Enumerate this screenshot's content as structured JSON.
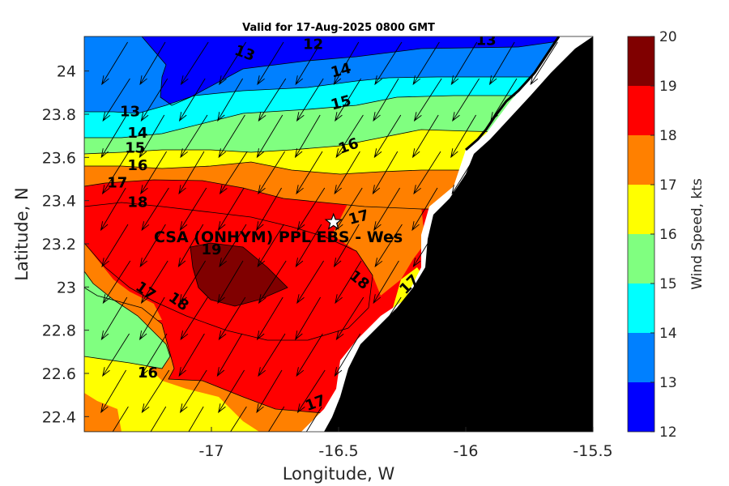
{
  "chart_data": {
    "type": "heatmap",
    "subtype": "filled-contour-map-with-wind-vectors",
    "title": "Valid for 17-Aug-2025 0800 GMT",
    "xlabel": "Longitude, W",
    "ylabel": "Latitude, N",
    "xlim": [
      -17.5,
      -15.5
    ],
    "ylim": [
      22.33,
      24.16
    ],
    "xticks": [
      -17,
      -16.5,
      -16,
      -15.5
    ],
    "xtick_labels": [
      "-17",
      "-16.5",
      "-16",
      "-15.5"
    ],
    "yticks": [
      22.4,
      22.6,
      22.8,
      23,
      23.2,
      23.4,
      23.6,
      23.8,
      24
    ],
    "ytick_labels": [
      "22.4",
      "22.6",
      "22.8",
      "23",
      "23.2",
      "23.4",
      "23.6",
      "23.8",
      "24"
    ],
    "grid": false,
    "colorbar": {
      "label": "Wind Speed, kts",
      "min": 12,
      "max": 20,
      "ticks": [
        12,
        13,
        14,
        15,
        16,
        17,
        18,
        19,
        20
      ],
      "tick_labels": [
        "12",
        "13",
        "14",
        "15",
        "16",
        "17",
        "18",
        "19",
        "20"
      ],
      "colors": [
        "#0000ff",
        "#0080ff",
        "#00ffff",
        "#80ff80",
        "#ffff00",
        "#ff8000",
        "#ff0000",
        "#800000"
      ]
    },
    "land_color": "#000000",
    "contour_labels": [
      {
        "text": "13",
        "lon": -16.87,
        "lat": 24.08,
        "rot": 20
      },
      {
        "text": "12",
        "lon": -16.6,
        "lat": 24.12,
        "rot": 0
      },
      {
        "text": "13",
        "lon": -15.92,
        "lat": 24.14,
        "rot": 0
      },
      {
        "text": "14",
        "lon": -16.49,
        "lat": 24.0,
        "rot": -15
      },
      {
        "text": "15",
        "lon": -16.49,
        "lat": 23.85,
        "rot": -15
      },
      {
        "text": "16",
        "lon": -16.46,
        "lat": 23.65,
        "rot": -20
      },
      {
        "text": "13",
        "lon": -17.32,
        "lat": 23.81,
        "rot": 0
      },
      {
        "text": "14",
        "lon": -17.29,
        "lat": 23.71,
        "rot": 0
      },
      {
        "text": "15",
        "lon": -17.3,
        "lat": 23.64,
        "rot": 0
      },
      {
        "text": "16",
        "lon": -17.29,
        "lat": 23.56,
        "rot": 0
      },
      {
        "text": "17",
        "lon": -17.37,
        "lat": 23.48,
        "rot": 0
      },
      {
        "text": "18",
        "lon": -17.29,
        "lat": 23.39,
        "rot": 0
      },
      {
        "text": "19",
        "lon": -17.0,
        "lat": 23.17,
        "rot": 0
      },
      {
        "text": "17",
        "lon": -16.42,
        "lat": 23.32,
        "rot": -15
      },
      {
        "text": "18",
        "lon": -16.42,
        "lat": 23.03,
        "rot": 40
      },
      {
        "text": "17",
        "lon": -16.22,
        "lat": 23.01,
        "rot": -45
      },
      {
        "text": "17",
        "lon": -17.26,
        "lat": 22.98,
        "rot": 35
      },
      {
        "text": "18",
        "lon": -17.13,
        "lat": 22.93,
        "rot": 35
      },
      {
        "text": "16",
        "lon": -17.25,
        "lat": 22.6,
        "rot": 0
      },
      {
        "text": "17",
        "lon": -16.59,
        "lat": 22.46,
        "rot": -20
      }
    ],
    "site": {
      "label": "CSA (ONHYM) PPL EBS  - Wes",
      "lon": -16.52,
      "lat": 23.3
    }
  }
}
